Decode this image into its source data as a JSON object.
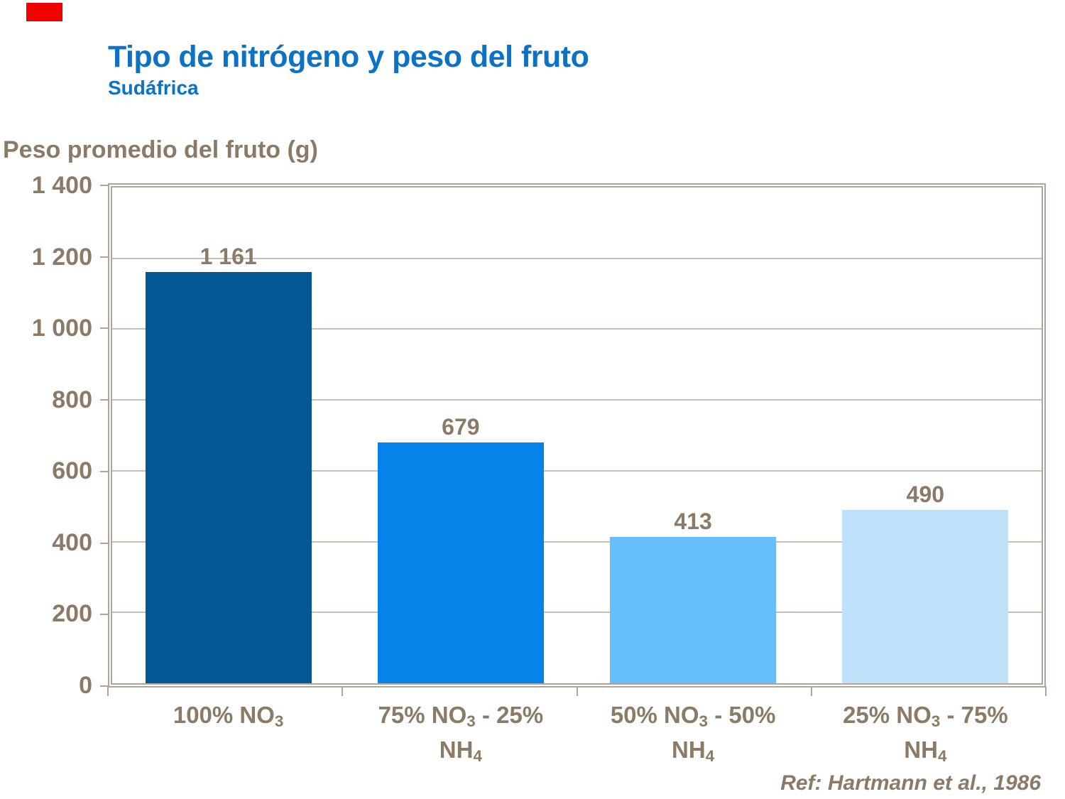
{
  "slide": {
    "title": "Tipo de nitrógeno y peso del fruto",
    "subtitle": "Sudáfrica",
    "reference": "Ref: Hartmann et al., 1986",
    "title_color": "#0b72c6",
    "text_color": "#8a7a67",
    "logo_color": "#f20000",
    "frame_color": "#b1a498",
    "gridline_color": "#c9beb1"
  },
  "chart_data": {
    "type": "bar",
    "title": "Tipo de nitrógeno y peso del fruto",
    "subtitle": "Sudáfrica",
    "xlabel": "",
    "ylabel": "Peso promedio del fruto (g)",
    "categories": [
      "100% NO₃",
      "75% NO₃ - 25% NH₄",
      "50% NO₃ - 50% NH₄",
      "25% NO₃ - 75% NH₄"
    ],
    "values": [
      1161,
      679,
      413,
      490
    ],
    "value_labels": [
      "1 161",
      "679",
      "413",
      "490"
    ],
    "ylim": [
      0,
      1400
    ],
    "ytick_labels": [
      "1 400",
      "1 200",
      "1 000",
      "800",
      "600",
      "400",
      "200",
      "0"
    ],
    "gridline_values": [
      200,
      400,
      600,
      800,
      1000,
      1200
    ],
    "bar_colors": [
      "#045795",
      "#0583e8",
      "#66befb",
      "#bfe1fa"
    ],
    "grid": true,
    "legend": false,
    "annotation": "Ref: Hartmann et al., 1986"
  },
  "labels": {
    "x": [
      {
        "l1a": "100% NO",
        "l1sub": "3",
        "l1b": "",
        "l2a": "",
        "l2sub": ""
      },
      {
        "l1a": "75% NO",
        "l1sub": "3",
        "l1b": " - 25%",
        "l2a": "NH",
        "l2sub": "4"
      },
      {
        "l1a": "50% NO",
        "l1sub": "3",
        "l1b": " - 50%",
        "l2a": "NH",
        "l2sub": "4"
      },
      {
        "l1a": "25% NO",
        "l1sub": "3",
        "l1b": " - 75%",
        "l2a": "NH",
        "l2sub": "4"
      }
    ]
  }
}
